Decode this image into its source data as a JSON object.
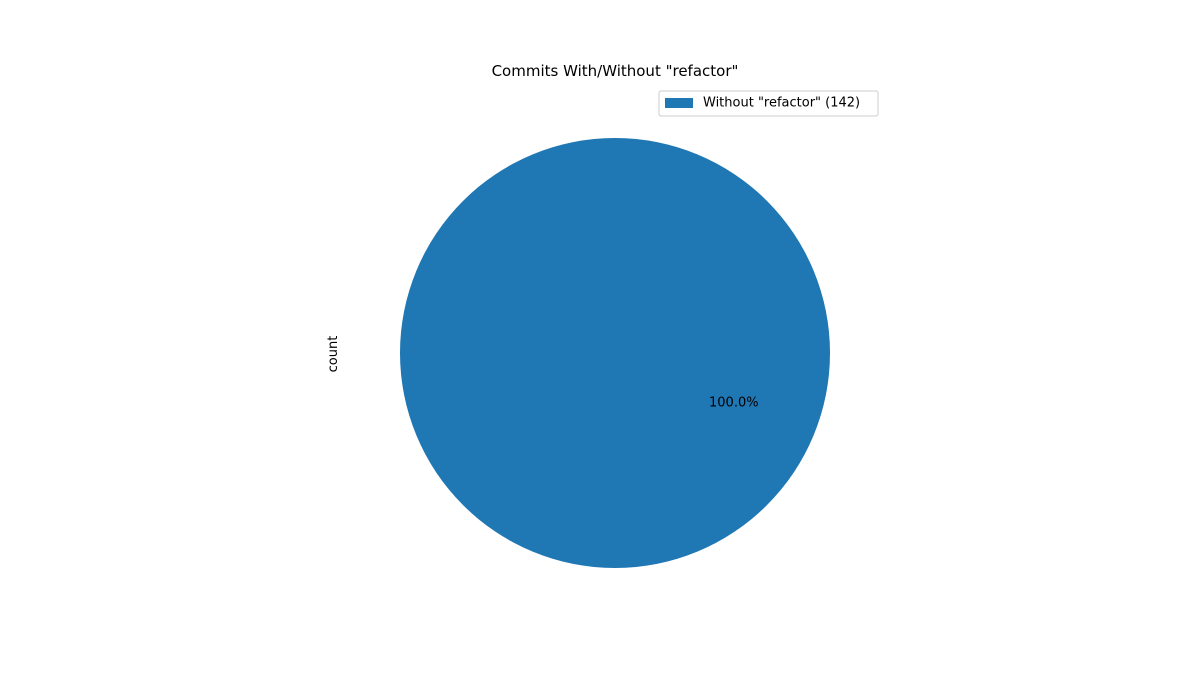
{
  "chart_data": {
    "type": "pie",
    "title": "Commits With/Without \"refactor\"",
    "ylabel": "count",
    "slices": [
      {
        "label": "Without \"refactor\" (142)",
        "value": 142,
        "percent_label": "100.0%",
        "color": "#1f77b4"
      }
    ],
    "legend_position": "top-right"
  }
}
